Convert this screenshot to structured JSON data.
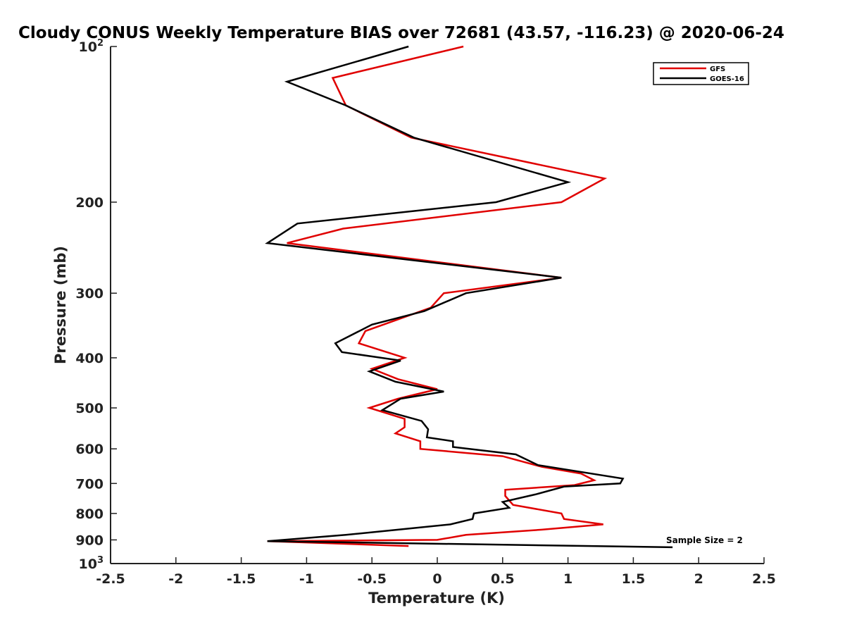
{
  "chart_data": {
    "type": "line",
    "title": "Cloudy CONUS Weekly Temperature BIAS over 72681 (43.57, -116.23) @ 2020-06-24",
    "xlabel": "Temperature (K)",
    "ylabel": "Pressure (mb)",
    "xlim": [
      -2.5,
      2.5
    ],
    "ylim": [
      100,
      1000
    ],
    "y_scale": "log",
    "y_reversed": true,
    "grid": false,
    "legend_position": "top-right",
    "x_ticks": [
      -2.5,
      -2,
      -1.5,
      -1,
      -0.5,
      0,
      0.5,
      1,
      1.5,
      2,
      2.5
    ],
    "x_tick_labels": [
      "-2.5",
      "-2",
      "-1.5",
      "-1",
      "-0.5",
      "0",
      "0.5",
      "1",
      "1.5",
      "2",
      "2.5"
    ],
    "y_ticks": [
      {
        "value": 100,
        "base": "10",
        "exp": "2"
      },
      {
        "value": 200,
        "label": "200"
      },
      {
        "value": 300,
        "label": "300"
      },
      {
        "value": 400,
        "label": "400"
      },
      {
        "value": 500,
        "label": "500"
      },
      {
        "value": 600,
        "label": "600"
      },
      {
        "value": 700,
        "label": "700"
      },
      {
        "value": 800,
        "label": "800"
      },
      {
        "value": 900,
        "label": "900"
      },
      {
        "value": 1000,
        "base": "10",
        "exp": "3"
      }
    ],
    "annotation": "Sample Size = 2",
    "series": [
      {
        "name": "GFS",
        "color": "#e00000",
        "points": [
          [
            0.2,
            100
          ],
          [
            -0.8,
            115
          ],
          [
            -0.7,
            130
          ],
          [
            -0.2,
            150
          ],
          [
            1.28,
            180
          ],
          [
            0.95,
            200
          ],
          [
            -0.72,
            225
          ],
          [
            -1.15,
            240
          ],
          [
            0.95,
            280
          ],
          [
            0.05,
            300
          ],
          [
            -0.05,
            320
          ],
          [
            -0.55,
            355
          ],
          [
            -0.6,
            375
          ],
          [
            -0.25,
            400
          ],
          [
            -0.5,
            420
          ],
          [
            -0.3,
            440
          ],
          [
            0.0,
            460
          ],
          [
            -0.3,
            480
          ],
          [
            -0.52,
            500
          ],
          [
            -0.25,
            525
          ],
          [
            -0.25,
            545
          ],
          [
            -0.32,
            560
          ],
          [
            -0.13,
            580
          ],
          [
            -0.13,
            600
          ],
          [
            0.5,
            620
          ],
          [
            0.8,
            650
          ],
          [
            1.1,
            670
          ],
          [
            1.2,
            690
          ],
          [
            1.05,
            705
          ],
          [
            0.52,
            720
          ],
          [
            0.52,
            740
          ],
          [
            0.58,
            770
          ],
          [
            0.95,
            800
          ],
          [
            0.97,
            820
          ],
          [
            1.27,
            840
          ],
          [
            0.8,
            860
          ],
          [
            0.22,
            880
          ],
          [
            0.0,
            900
          ],
          [
            -1.3,
            905
          ],
          [
            -0.22,
            925
          ]
        ]
      },
      {
        "name": "GOES-16",
        "color": "#000000",
        "points": [
          [
            -0.22,
            100
          ],
          [
            -1.15,
            117
          ],
          [
            -0.7,
            130
          ],
          [
            -0.18,
            150
          ],
          [
            1.0,
            183
          ],
          [
            0.45,
            200
          ],
          [
            -1.07,
            220
          ],
          [
            -1.3,
            240
          ],
          [
            0.95,
            280
          ],
          [
            0.22,
            300
          ],
          [
            -0.1,
            325
          ],
          [
            -0.5,
            345
          ],
          [
            -0.78,
            375
          ],
          [
            -0.73,
            390
          ],
          [
            -0.28,
            405
          ],
          [
            -0.52,
            425
          ],
          [
            -0.32,
            445
          ],
          [
            0.05,
            465
          ],
          [
            -0.28,
            480
          ],
          [
            -0.42,
            505
          ],
          [
            -0.12,
            530
          ],
          [
            -0.07,
            550
          ],
          [
            -0.08,
            570
          ],
          [
            0.12,
            580
          ],
          [
            0.12,
            595
          ],
          [
            0.6,
            615
          ],
          [
            0.77,
            645
          ],
          [
            1.42,
            685
          ],
          [
            1.4,
            700
          ],
          [
            0.97,
            710
          ],
          [
            0.75,
            735
          ],
          [
            0.5,
            760
          ],
          [
            0.55,
            780
          ],
          [
            0.28,
            800
          ],
          [
            0.27,
            820
          ],
          [
            0.1,
            840
          ],
          [
            -0.3,
            860
          ],
          [
            -0.7,
            880
          ],
          [
            -1.3,
            905
          ],
          [
            1.8,
            930
          ]
        ]
      }
    ]
  }
}
